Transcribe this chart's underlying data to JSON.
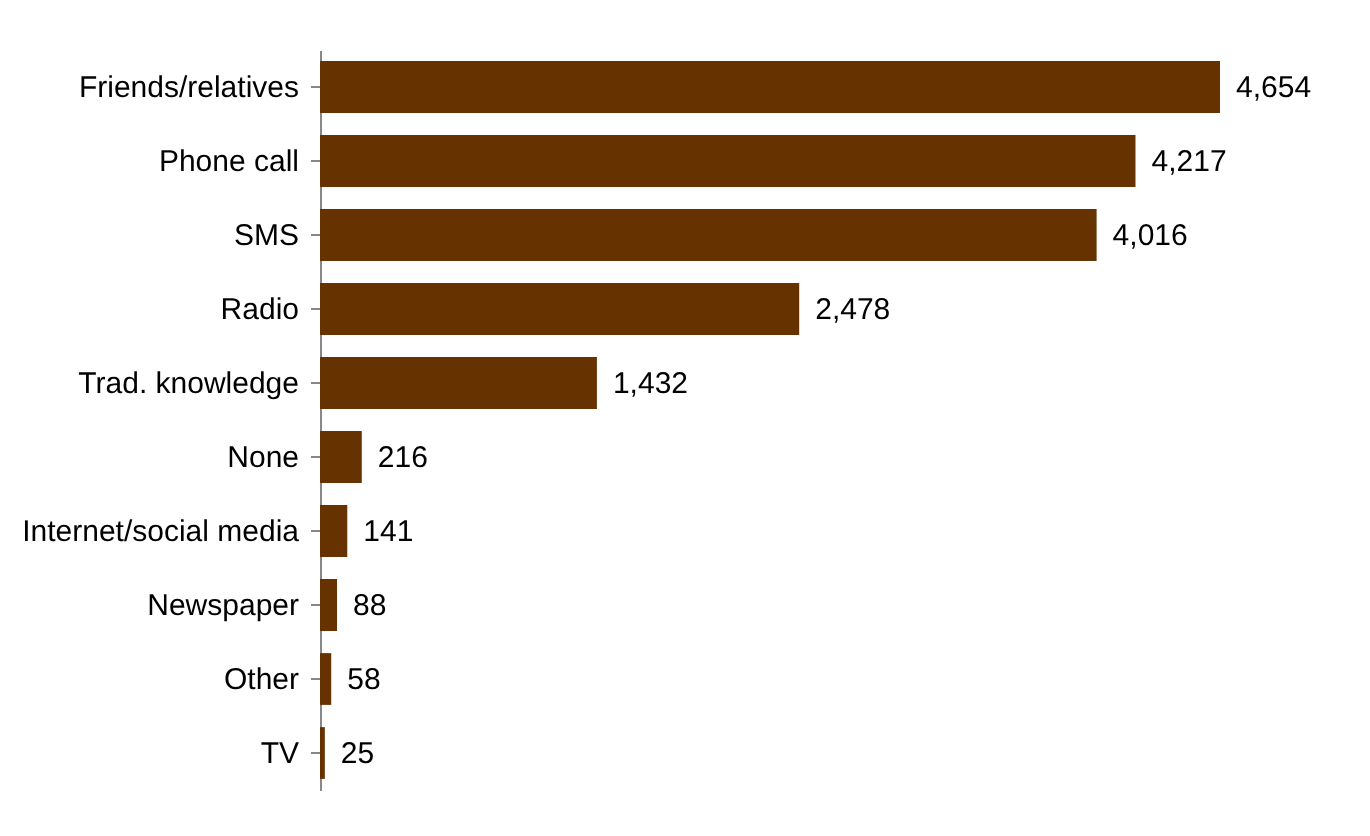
{
  "chart_data": {
    "type": "bar",
    "orientation": "horizontal",
    "value_labels": [
      "4,654",
      "4,217",
      "4,016",
      "2,478",
      "1,432",
      "216",
      "141",
      "88",
      "58",
      "25"
    ],
    "categories": [
      "Friends/relatives",
      "Phone call",
      "SMS",
      "Radio",
      "Trad. knowledge",
      "None",
      "Internet/social media",
      "Newspaper",
      "Other",
      "TV"
    ],
    "values": [
      4654,
      4217,
      4016,
      2478,
      1432,
      216,
      141,
      88,
      58,
      25
    ],
    "color": "#663300"
  }
}
